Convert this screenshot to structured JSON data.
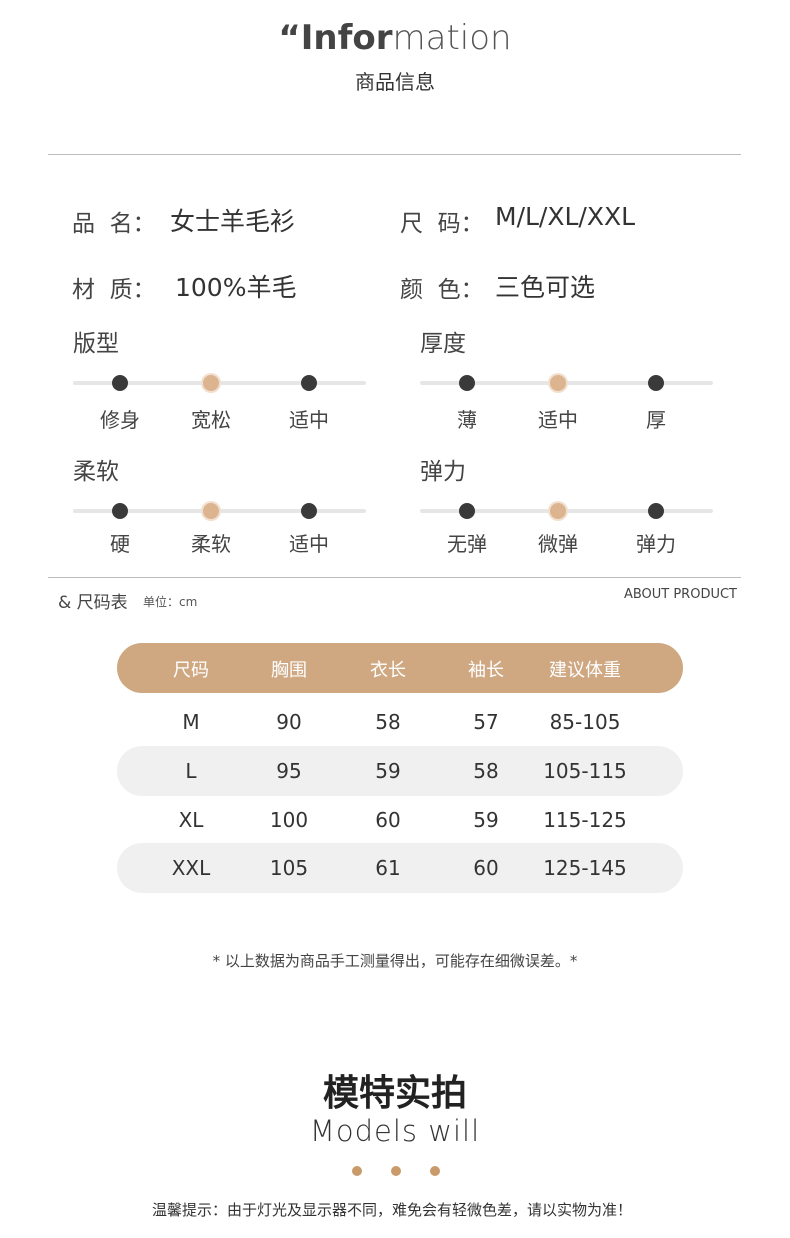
{
  "header": {
    "quote": "“",
    "title_bold": "Infor",
    "title_light": "mation",
    "subtitle": "商品信息"
  },
  "info": [
    {
      "label": "品  名：",
      "value": "女士羊毛衫"
    },
    {
      "label": "尺  码：",
      "value": "M/L/XL/XXL"
    },
    {
      "label": "材  质：",
      "value": "100%羊毛"
    },
    {
      "label": "颜  色：",
      "value": "三色可选"
    }
  ],
  "sliders": [
    {
      "title": "版型",
      "options": [
        "修身",
        "宽松",
        "适中"
      ],
      "selected": 1
    },
    {
      "title": "厚度",
      "options": [
        "薄",
        "适中",
        "厚"
      ],
      "selected": 1
    },
    {
      "title": "柔软",
      "options": [
        "硬",
        "柔软",
        "适中"
      ],
      "selected": 1
    },
    {
      "title": "弹力",
      "options": [
        "无弹",
        "微弹",
        "弹力"
      ],
      "selected": 1
    }
  ],
  "size_table": {
    "title": "& 尺码表",
    "unit": "单位：cm",
    "about": "ABOUT PRODUCT",
    "header": [
      "尺码",
      "胸围",
      "衣长",
      "袖长",
      "建议体重"
    ],
    "rows": [
      [
        "M",
        90,
        58,
        57,
        "85-105"
      ],
      [
        "L",
        95,
        59,
        58,
        "105-115"
      ],
      [
        "XL",
        100,
        60,
        59,
        "115-125"
      ],
      [
        "XXL",
        105,
        61,
        60,
        "125-145"
      ]
    ]
  },
  "note": "* 以上数据为商品手工测量得出，可能存在细微误差。*",
  "models": {
    "title": "模特实拍",
    "subtitle": "Models will"
  },
  "footer": "温馨提示：由于灯光及显示器不同，难免会有轻微色差，请以实物为准！"
}
